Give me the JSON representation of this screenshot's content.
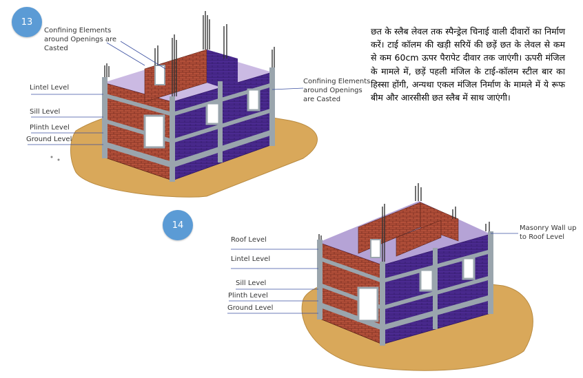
{
  "figure13": {
    "step_number": "13",
    "labels": {
      "confining_left": "Confining Elements around Openings are Casted",
      "confining_right": "Confining Elements around Openings are Casted",
      "lintel": "Lintel Level",
      "sill": "Sill Level",
      "plinth": "Plinth Level",
      "ground": "Ground Level"
    }
  },
  "figure14": {
    "step_number": "14",
    "labels": {
      "masonry": "Masonry Wall up to Roof Level",
      "roof": "Roof Level",
      "lintel": "Lintel Level",
      "sill": "Sill Level",
      "plinth": "Plinth Level",
      "ground": "Ground Level"
    }
  },
  "description_hi": "छत के स्लैब लेवल तक स्पैन्ड्रेल चिनाई वाली दीवारों का निर्माण करें। टाई कॉलम की खड़ी सरियें की छड़ें छत के लेवल से कम से कम 60cm ऊपर पैरापेट दीवार तक जाएंगी। ऊपरी मंजिल के मामले में, छड़ें पहली मंजिल के टाई-कॉलम स्टील बार का हिस्सा होंगी, अन्यथा एकल मंजिल निर्माण के मामले में ये रूफ बीम और आरसीसी छत स्लैब में साथ जाएंगी।",
  "colors": {
    "badge": "#5b9bd5",
    "brick": "#b4503a",
    "masonry_inner": "#4b2a91",
    "concrete": "#9aa5ad",
    "ground": "#d9a85a",
    "leader_line": "#3a4fa0"
  }
}
